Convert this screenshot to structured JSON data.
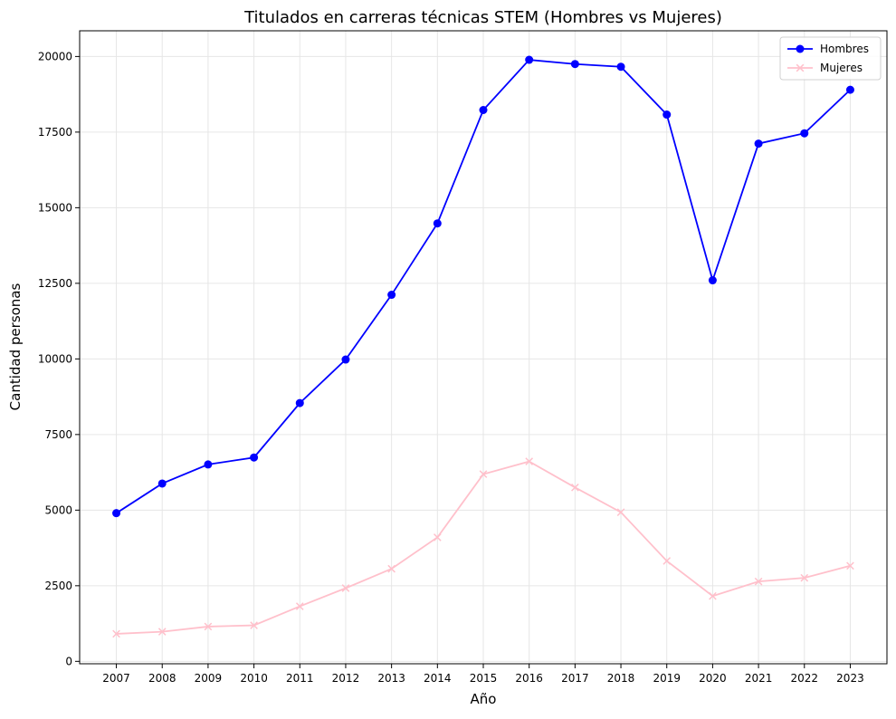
{
  "chart_data": {
    "type": "line",
    "title": "Titulados en carreras técnicas STEM (Hombres vs Mujeres)",
    "xlabel": "Año",
    "ylabel": "Cantidad personas",
    "x": [
      2007,
      2008,
      2009,
      2010,
      2011,
      2012,
      2013,
      2014,
      2015,
      2016,
      2017,
      2018,
      2019,
      2020,
      2021,
      2022,
      2023
    ],
    "xlim": [
      2006.2,
      2023.8
    ],
    "ylim": [
      -80,
      20850
    ],
    "yticks": [
      0,
      2500,
      5000,
      7500,
      10000,
      12500,
      15000,
      17500,
      20000
    ],
    "grid": true,
    "legend_position": "top-right",
    "series": [
      {
        "name": "Hombres",
        "color": "#0000ff",
        "marker": "circle",
        "values": [
          4900,
          5880,
          6510,
          6740,
          8540,
          9980,
          12120,
          14480,
          18230,
          19890,
          19750,
          19660,
          18080,
          12600,
          17120,
          17460,
          18900
        ]
      },
      {
        "name": "Mujeres",
        "color": "#ffc0cb",
        "marker": "x",
        "values": [
          910,
          980,
          1150,
          1190,
          1820,
          2420,
          3060,
          4100,
          6190,
          6610,
          5750,
          4930,
          3320,
          2160,
          2640,
          2760,
          3160
        ]
      }
    ]
  }
}
